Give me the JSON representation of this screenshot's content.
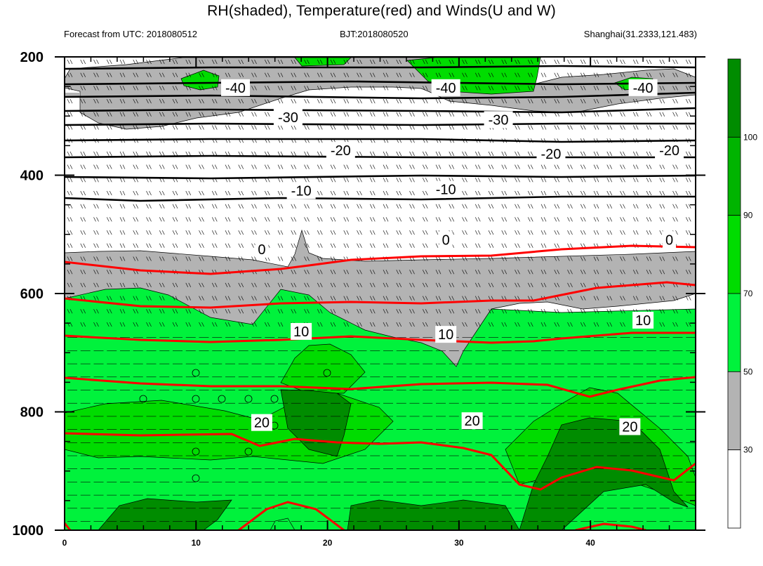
{
  "header": {
    "title": "RH(shaded), Temperature(red) and Winds(U and W)",
    "forecast": "Forecast from UTC: 2018080512",
    "bjt": "BJT:2018080520",
    "location": "Shanghai(31.2333,121.483)"
  },
  "chart_data": {
    "type": "heatmap",
    "title": "RH(shaded), Temperature(red) and Winds(U and W)",
    "subtitles": [
      "Forecast from UTC: 2018080512",
      "BJT:2018080520",
      "Shanghai(31.2333,121.483)"
    ],
    "x_range": [
      0,
      48
    ],
    "x_ticks": [
      0,
      10,
      20,
      30,
      40
    ],
    "x_tick_labels": [
      "0",
      "10",
      "20",
      "30",
      "40"
    ],
    "y_range": [
      1000,
      200
    ],
    "y_ticks": [
      200,
      400,
      600,
      800,
      1000
    ],
    "y_tick_labels": [
      "200",
      "400",
      "600",
      "800",
      "1000"
    ],
    "colorbar": {
      "levels": [
        30,
        50,
        70,
        90,
        100
      ],
      "labels": [
        "30",
        "50",
        "70",
        "90",
        "100"
      ],
      "colors": [
        "#ffffff",
        "#b3b3b3",
        "#00f23c",
        "#00dc00",
        "#00b400",
        "#008c00"
      ]
    },
    "colors": {
      "light_green": "#00f23c",
      "mid_green": "#00dc00",
      "green": "#00b400",
      "dark_green": "#008c00",
      "gray": "#b3b3b3",
      "temperature_line": "#ff0000",
      "isotherm_line": "#000000"
    },
    "temperature_labels": [
      {
        "text": "-40",
        "x": 13,
        "p": 252
      },
      {
        "text": "-40",
        "x": 29,
        "p": 252
      },
      {
        "text": "-40",
        "x": 44,
        "p": 252
      },
      {
        "text": "-30",
        "x": 17,
        "p": 302
      },
      {
        "text": "-30",
        "x": 33,
        "p": 306
      },
      {
        "text": "-20",
        "x": 21,
        "p": 358
      },
      {
        "text": "-20",
        "x": 37,
        "p": 364
      },
      {
        "text": "-20",
        "x": 46,
        "p": 358
      },
      {
        "text": "-10",
        "x": 18,
        "p": 426
      },
      {
        "text": "-10",
        "x": 29,
        "p": 424
      },
      {
        "text": "0",
        "x": 15,
        "p": 525
      },
      {
        "text": "0",
        "x": 29,
        "p": 509
      },
      {
        "text": "0",
        "x": 46,
        "p": 509
      },
      {
        "text": "10",
        "x": 18,
        "p": 664
      },
      {
        "text": "10",
        "x": 29,
        "p": 669
      },
      {
        "text": "10",
        "x": 44,
        "p": 645
      },
      {
        "text": "20",
        "x": 15,
        "p": 818
      },
      {
        "text": "20",
        "x": 31,
        "p": 815
      },
      {
        "text": "20",
        "x": 43,
        "p": 825
      }
    ]
  }
}
